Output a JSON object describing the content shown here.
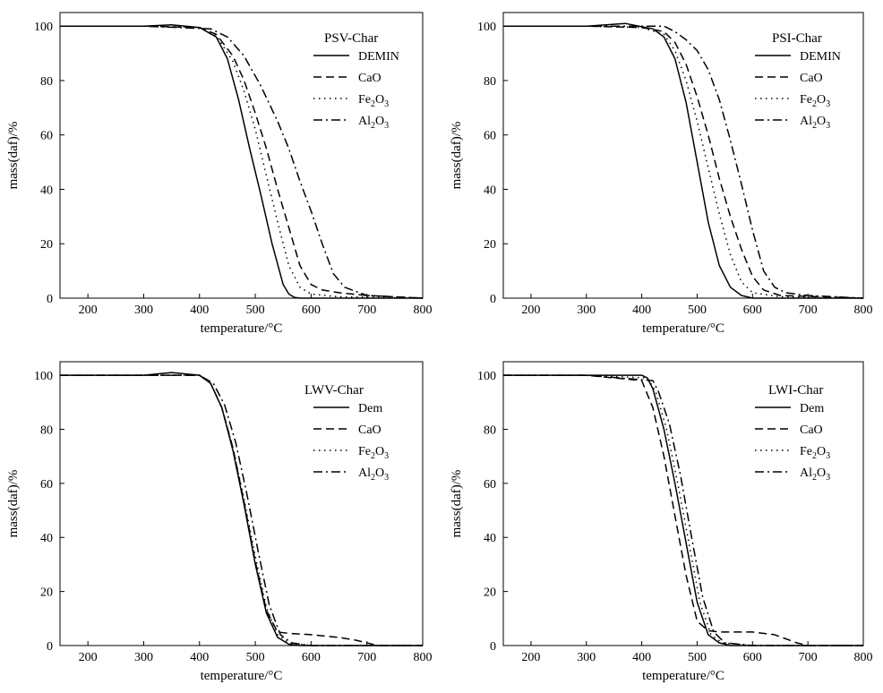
{
  "chart_data": [
    {
      "type": "line",
      "title": "PSV-Char",
      "xlabel": "temperature/°C",
      "ylabel": "mass(daf)/%",
      "xlim": [
        150,
        800
      ],
      "ylim": [
        0,
        105
      ],
      "xticks": [
        200,
        300,
        400,
        500,
        600,
        700,
        800
      ],
      "yticks": [
        0,
        20,
        40,
        60,
        80,
        100
      ],
      "legend_position": "top-right",
      "series": [
        {
          "name": "DEMIN",
          "sub": "",
          "style": "solid",
          "x": [
            150,
            300,
            350,
            400,
            430,
            450,
            470,
            490,
            510,
            530,
            550,
            560,
            570,
            580,
            800
          ],
          "y": [
            100,
            100,
            100.5,
            99.5,
            96,
            88,
            73,
            55,
            38,
            20,
            5,
            1.5,
            0.3,
            0,
            0
          ]
        },
        {
          "name": "CaO",
          "sub": "",
          "style": "dashed",
          "x": [
            150,
            300,
            400,
            430,
            460,
            480,
            500,
            520,
            540,
            560,
            580,
            600,
            620,
            650,
            700,
            800
          ],
          "y": [
            100,
            100,
            99.5,
            97,
            89,
            80,
            68,
            55,
            40,
            26,
            12,
            5,
            3,
            2,
            1,
            0
          ]
        },
        {
          "name": "Fe",
          "sub": "2",
          "name2": "O",
          "sub2": "3",
          "style": "dotted",
          "x": [
            150,
            300,
            400,
            430,
            460,
            480,
            500,
            520,
            540,
            560,
            580,
            600,
            650,
            800
          ],
          "y": [
            100,
            100,
            99.5,
            96.5,
            87,
            76,
            62,
            45,
            28,
            12,
            4,
            1.5,
            0.5,
            0
          ]
        },
        {
          "name": "Al",
          "sub": "2",
          "name2": "O",
          "sub2": "3",
          "style": "dashdot",
          "x": [
            150,
            300,
            420,
            450,
            480,
            510,
            540,
            560,
            580,
            600,
            620,
            640,
            660,
            700,
            800
          ],
          "y": [
            100,
            100,
            99,
            96,
            89,
            78,
            65,
            55,
            43,
            32,
            20,
            9,
            4,
            1,
            0
          ]
        }
      ]
    },
    {
      "type": "line",
      "title": "PSI-Char",
      "xlabel": "temperature/°C",
      "ylabel": "mass(daf)/%",
      "xlim": [
        150,
        800
      ],
      "ylim": [
        0,
        105
      ],
      "xticks": [
        200,
        300,
        400,
        500,
        600,
        700,
        800
      ],
      "yticks": [
        0,
        20,
        40,
        60,
        80,
        100
      ],
      "legend_position": "top-right",
      "series": [
        {
          "name": "DEMIN",
          "sub": "",
          "style": "solid",
          "x": [
            150,
            300,
            370,
            420,
            440,
            460,
            480,
            500,
            520,
            540,
            560,
            580,
            600,
            800
          ],
          "y": [
            100,
            100,
            101,
            99,
            96,
            88,
            72,
            50,
            28,
            12,
            4,
            1,
            0,
            0
          ]
        },
        {
          "name": "CaO",
          "sub": "",
          "style": "dashed",
          "x": [
            150,
            300,
            400,
            440,
            460,
            480,
            500,
            520,
            540,
            560,
            580,
            600,
            620,
            650,
            800
          ],
          "y": [
            100,
            100,
            99.5,
            98,
            94,
            86,
            74,
            60,
            44,
            30,
            18,
            8,
            3,
            1,
            0
          ]
        },
        {
          "name": "Fe",
          "sub": "2",
          "name2": "O",
          "sub2": "3",
          "style": "dotted",
          "x": [
            150,
            300,
            400,
            440,
            460,
            480,
            500,
            520,
            540,
            560,
            580,
            600,
            650,
            800
          ],
          "y": [
            100,
            100,
            99.5,
            97,
            91,
            80,
            65,
            48,
            31,
            16,
            6,
            2,
            0.5,
            0
          ]
        },
        {
          "name": "Al",
          "sub": "2",
          "name2": "O",
          "sub2": "3",
          "style": "dashdot",
          "x": [
            150,
            300,
            440,
            460,
            480,
            500,
            520,
            540,
            560,
            580,
            600,
            620,
            640,
            660,
            700,
            800
          ],
          "y": [
            100,
            100,
            100,
            98,
            95,
            91,
            84,
            73,
            58,
            42,
            25,
            10,
            4,
            2,
            1,
            0
          ]
        }
      ]
    },
    {
      "type": "line",
      "title": "LWV-Char",
      "xlabel": "temperature/°C",
      "ylabel": "mass(daf)/%",
      "xlim": [
        150,
        800
      ],
      "ylim": [
        0,
        105
      ],
      "xticks": [
        200,
        300,
        400,
        500,
        600,
        700,
        800
      ],
      "yticks": [
        0,
        20,
        40,
        60,
        80,
        100
      ],
      "legend_position": "top-right",
      "series": [
        {
          "name": "Dem",
          "sub": "",
          "style": "solid",
          "x": [
            150,
            300,
            350,
            400,
            420,
            440,
            460,
            480,
            500,
            520,
            540,
            560,
            580,
            800
          ],
          "y": [
            100,
            100,
            101,
            100,
            97,
            88,
            72,
            52,
            30,
            12,
            3,
            0.5,
            0,
            0
          ]
        },
        {
          "name": "CaO",
          "sub": "",
          "style": "dashed",
          "x": [
            150,
            300,
            400,
            420,
            440,
            460,
            480,
            500,
            520,
            540,
            560,
            600,
            650,
            680,
            700,
            720,
            800
          ],
          "y": [
            100,
            100,
            100,
            97,
            88,
            73,
            53,
            31,
            13,
            5,
            4.5,
            4,
            3,
            2,
            1,
            0,
            0
          ]
        },
        {
          "name": "Fe",
          "sub": "2",
          "name2": "O",
          "sub2": "3",
          "style": "dotted",
          "x": [
            150,
            300,
            400,
            420,
            440,
            460,
            480,
            500,
            520,
            540,
            560,
            600,
            800
          ],
          "y": [
            100,
            100,
            100,
            97,
            88,
            73,
            54,
            33,
            14,
            4,
            1,
            0,
            0
          ]
        },
        {
          "name": "Al",
          "sub": "2",
          "name2": "O",
          "sub2": "3",
          "style": "dashdot",
          "x": [
            150,
            300,
            400,
            425,
            445,
            465,
            485,
            505,
            525,
            545,
            565,
            600,
            800
          ],
          "y": [
            100,
            100,
            100,
            97,
            89,
            75,
            56,
            35,
            15,
            4,
            1,
            0,
            0
          ]
        }
      ]
    },
    {
      "type": "line",
      "title": "LWI-Char",
      "xlabel": "temperature/°C",
      "ylabel": "mass(daf)/%",
      "xlim": [
        150,
        800
      ],
      "ylim": [
        0,
        105
      ],
      "xticks": [
        200,
        300,
        400,
        500,
        600,
        700,
        800
      ],
      "yticks": [
        0,
        20,
        40,
        60,
        80,
        100
      ],
      "legend_position": "top-right",
      "series": [
        {
          "name": "Dem",
          "sub": "",
          "style": "solid",
          "x": [
            150,
            300,
            400,
            410,
            420,
            440,
            460,
            480,
            500,
            520,
            540,
            560,
            800
          ],
          "y": [
            100,
            100,
            100,
            99,
            95,
            80,
            60,
            38,
            16,
            4,
            1,
            0,
            0
          ]
        },
        {
          "name": "CaO",
          "sub": "",
          "style": "dashed",
          "x": [
            150,
            300,
            400,
            420,
            440,
            460,
            480,
            500,
            520,
            540,
            600,
            640,
            680,
            700,
            800
          ],
          "y": [
            100,
            100,
            98,
            88,
            70,
            48,
            26,
            9,
            5.5,
            5,
            5,
            4,
            1,
            0,
            0
          ]
        },
        {
          "name": "Fe",
          "sub": "2",
          "name2": "O",
          "sub2": "3",
          "style": "dotted",
          "x": [
            150,
            300,
            410,
            425,
            445,
            465,
            485,
            505,
            525,
            545,
            600,
            800
          ],
          "y": [
            100,
            100,
            99,
            94,
            80,
            60,
            38,
            16,
            4,
            1,
            0,
            0
          ]
        },
        {
          "name": "Al",
          "sub": "2",
          "name2": "O",
          "sub2": "3",
          "style": "dashdot",
          "x": [
            150,
            300,
            420,
            430,
            450,
            470,
            490,
            510,
            530,
            550,
            600,
            800
          ],
          "y": [
            100,
            100,
            98,
            94,
            82,
            63,
            40,
            18,
            5,
            1,
            0,
            0
          ]
        }
      ]
    }
  ]
}
